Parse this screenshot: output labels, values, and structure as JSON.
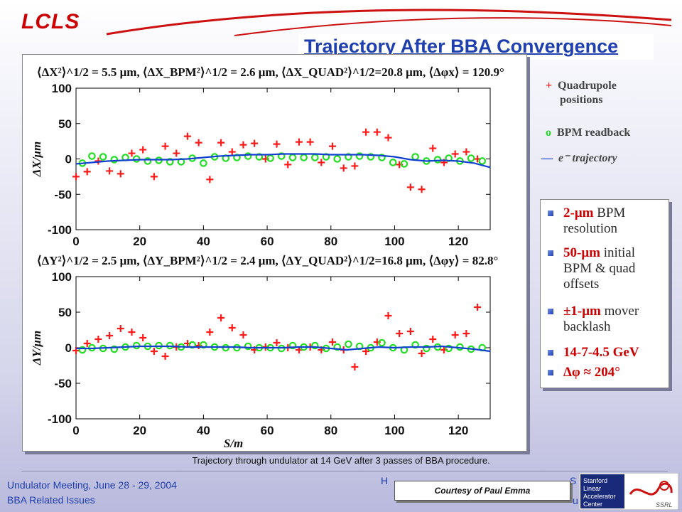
{
  "header": {
    "logo_text": "LCLS",
    "title": "Trajectory After BBA Convergence"
  },
  "legend": {
    "quad_symbol": "+",
    "quad_label_1": "Quadrupole",
    "quad_label_2": "positions",
    "bpm_symbol": "o",
    "bpm_label": "BPM readback",
    "traj_symbol": "—",
    "traj_label": "e⁻ trajectory"
  },
  "bullets": {
    "b1_red": "2-μm",
    "b1_rest": " BPM resolution",
    "b2_red": "50-μm",
    "b2_rest": " initial BPM & quad offsets",
    "b3_red": "±1-μm",
    "b3_rest": " mover backlash",
    "b4_red": "14-7-4.5 GeV",
    "b5_red": "Δφ ≈ 204°"
  },
  "caption": "Trajectory through undulator at 14 GeV after 3 passes of BBA procedure.",
  "footer": {
    "left_line1": "Undulator Meeting, June 28 - 29, 2004",
    "left_line2": "BBA Related Issues",
    "mid_fragment": "H",
    "mid_fragment2": "S",
    "mid_fragment3": "u",
    "courtesy": "Courtesy of Paul Emma"
  },
  "colors": {
    "title_blue": "#1f3fae",
    "quad_red": "#ff1a1a",
    "bpm_green": "#22dd22",
    "traj_blue": "#1040d0"
  },
  "chart_data": [
    {
      "type": "scatter",
      "title": "⟨ΔX²⟩^1/2 = 5.5 μm, ⟨ΔX_BPM²⟩^1/2 = 2.6 μm, ⟨ΔX_QUAD²⟩^1/2=20.8 μm, ⟨Δφx⟩ = 120.9°",
      "ylabel": "ΔX/μm",
      "xlabel": "",
      "xlim": [
        0,
        130
      ],
      "ylim": [
        -100,
        100
      ],
      "xticks": [
        0,
        20,
        40,
        60,
        80,
        100,
        120
      ],
      "yticks": [
        100,
        50,
        0,
        -50,
        -100
      ],
      "grid": false,
      "series": [
        {
          "name": "Quadrupole positions",
          "marker": "+",
          "x": [
            0,
            3.5,
            7,
            10.5,
            14,
            17.5,
            21,
            24.5,
            28,
            31.5,
            35,
            38.5,
            42,
            45.5,
            49,
            52.5,
            56,
            59.5,
            63,
            66.5,
            70,
            73.5,
            77,
            80.5,
            84,
            87.5,
            91,
            94.5,
            98,
            101.5,
            105,
            108.5,
            112,
            115.5,
            119,
            122.5,
            126
          ],
          "y": [
            -25,
            -18,
            -3,
            -17,
            -21,
            8,
            13,
            -25,
            18,
            8,
            32,
            23,
            -29,
            23,
            10,
            20,
            22,
            0,
            21,
            -8,
            24,
            24,
            -5,
            18,
            -13,
            -10,
            38,
            38,
            30,
            -8,
            -40,
            -43,
            15,
            -5,
            7,
            10,
            0
          ]
        },
        {
          "name": "BPM readback",
          "marker": "o",
          "x": [
            2,
            5,
            8.5,
            12,
            15.5,
            19,
            22.5,
            26,
            29.5,
            33,
            36.5,
            40,
            43.5,
            47,
            50.5,
            54,
            57.5,
            61,
            64.5,
            68,
            71.5,
            75,
            78.5,
            82,
            85.5,
            89,
            92.5,
            96,
            99.5,
            103,
            106.5,
            110,
            113.5,
            117,
            120.5,
            124,
            127.5
          ],
          "y": [
            -6,
            4,
            3,
            -1,
            2,
            0,
            -3,
            -2,
            -4,
            -4,
            1,
            -6,
            3,
            1,
            2,
            4,
            3,
            1,
            4,
            2,
            2,
            2,
            3,
            0,
            3,
            4,
            3,
            2,
            -5,
            -7,
            3,
            -3,
            -1,
            1,
            -3,
            1,
            -3
          ]
        },
        {
          "name": "e⁻ trajectory",
          "marker": "line",
          "x": [
            0,
            5,
            10,
            15,
            20,
            25,
            30,
            35,
            40,
            45,
            50,
            55,
            60,
            65,
            70,
            75,
            80,
            85,
            90,
            95,
            100,
            105,
            110,
            115,
            120,
            125,
            130
          ],
          "y": [
            -7,
            -5,
            -3,
            -2,
            -1,
            -1,
            -1,
            0,
            2,
            4,
            5,
            6,
            6,
            7,
            7,
            7,
            6,
            6,
            6,
            5,
            3,
            -1,
            -3,
            -2,
            -3,
            -6,
            -12
          ]
        }
      ]
    },
    {
      "type": "scatter",
      "title": "⟨ΔY²⟩^1/2 = 2.5 μm, ⟨ΔY_BPM²⟩^1/2 = 2.4 μm, ⟨ΔY_QUAD²⟩^1/2=16.8 μm, ⟨Δφy⟩ = 82.8°",
      "ylabel": "ΔY/μm",
      "xlabel": "S/m",
      "xlim": [
        0,
        130
      ],
      "ylim": [
        -100,
        100
      ],
      "xticks": [
        0,
        20,
        40,
        60,
        80,
        100,
        120
      ],
      "yticks": [
        100,
        50,
        0,
        -50,
        -100
      ],
      "grid": false,
      "series": [
        {
          "name": "Quadrupole positions",
          "marker": "+",
          "x": [
            0,
            3.5,
            7,
            10.5,
            14,
            17.5,
            21,
            24.5,
            28,
            31.5,
            35,
            38.5,
            42,
            45.5,
            49,
            52.5,
            56,
            59.5,
            63,
            66.5,
            70,
            73.5,
            77,
            80.5,
            84,
            87.5,
            91,
            94.5,
            98,
            101.5,
            105,
            108.5,
            112,
            115.5,
            119,
            122.5,
            126
          ],
          "y": [
            -4,
            6,
            12,
            17,
            27,
            22,
            14,
            -5,
            -12,
            1,
            6,
            3,
            22,
            42,
            28,
            18,
            -3,
            1,
            7,
            0,
            -3,
            1,
            -3,
            8,
            -3,
            -27,
            -5,
            8,
            45,
            20,
            23,
            -8,
            12,
            -3,
            18,
            20,
            57
          ]
        },
        {
          "name": "BPM readback",
          "marker": "o",
          "x": [
            2,
            5,
            8.5,
            12,
            15.5,
            19,
            22.5,
            26,
            29.5,
            33,
            36.5,
            40,
            43.5,
            47,
            50.5,
            54,
            57.5,
            61,
            64.5,
            68,
            71.5,
            75,
            78.5,
            82,
            85.5,
            89,
            92.5,
            96,
            99.5,
            103,
            106.5,
            110,
            113.5,
            117,
            120.5,
            124,
            127.5
          ],
          "y": [
            -3,
            0,
            -1,
            -2,
            1,
            3,
            2,
            3,
            3,
            1,
            4,
            4,
            1,
            0,
            0,
            2,
            0,
            0,
            -1,
            3,
            1,
            3,
            -1,
            1,
            5,
            2,
            0,
            7,
            0,
            -3,
            4,
            -1,
            1,
            -1,
            1,
            -2,
            0
          ]
        },
        {
          "name": "e⁻ trajectory",
          "marker": "line",
          "x": [
            0,
            5,
            10,
            15,
            20,
            25,
            30,
            35,
            40,
            45,
            50,
            55,
            60,
            65,
            70,
            75,
            80,
            85,
            90,
            95,
            100,
            105,
            110,
            115,
            120,
            125,
            130
          ],
          "y": [
            -1,
            -1,
            0,
            1,
            2,
            2,
            2,
            1,
            1,
            1,
            1,
            0,
            0,
            0,
            1,
            1,
            -1,
            -3,
            -1,
            1,
            0,
            1,
            1,
            2,
            0,
            -2,
            -5
          ]
        }
      ]
    }
  ]
}
